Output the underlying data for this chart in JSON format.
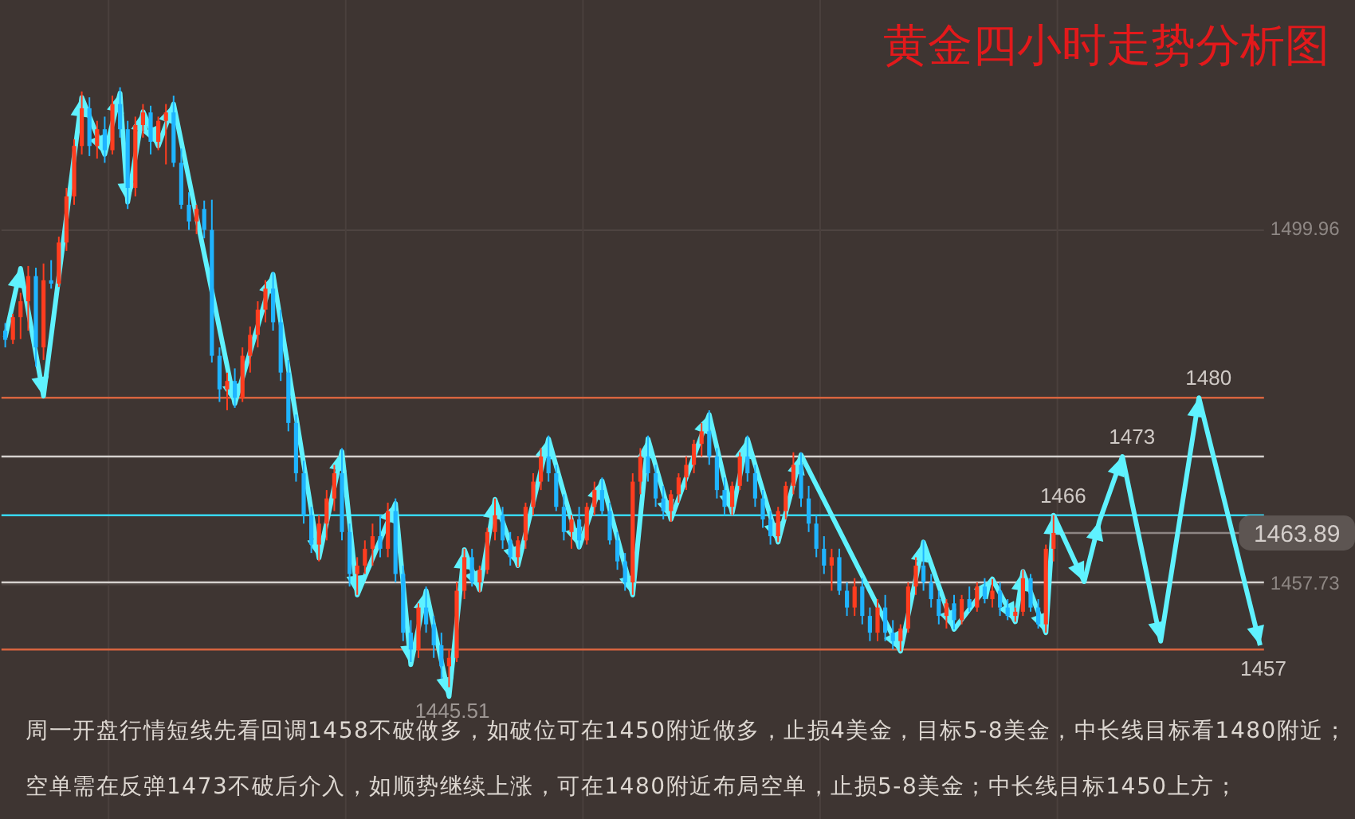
{
  "chart_data": {
    "type": "candlestick",
    "title": "黄金四小时走势分析图",
    "categories": [
      null,
      null,
      null,
      null,
      null,
      null,
      null,
      null,
      null,
      null,
      null,
      null,
      null,
      null,
      null,
      null,
      null,
      null,
      null,
      null,
      null,
      null,
      null,
      null,
      null,
      null,
      null,
      null,
      null,
      null,
      null,
      null,
      null,
      null,
      null,
      null,
      null,
      null,
      null,
      null,
      null,
      null,
      null,
      null,
      null,
      null,
      null,
      null,
      null,
      null,
      null,
      null,
      null,
      null,
      null,
      null,
      null,
      null,
      null,
      null,
      null,
      null,
      null,
      null,
      null,
      null,
      null,
      null,
      null,
      null,
      null,
      null,
      null,
      null,
      null,
      null,
      null,
      null,
      null,
      null,
      null,
      null,
      null,
      null,
      null,
      null,
      null,
      null,
      null,
      null,
      null,
      null,
      null,
      null,
      null,
      null,
      null,
      null,
      null,
      null,
      null,
      null,
      null,
      null,
      null,
      null,
      null,
      null,
      null,
      null,
      null,
      null,
      null,
      null,
      null,
      null,
      null,
      null,
      null,
      null,
      null,
      null,
      null,
      null,
      null,
      null,
      null,
      null,
      null,
      null,
      null,
      null,
      null,
      null,
      null,
      null,
      null,
      null,
      null,
      null,
      null,
      null,
      null,
      null,
      null,
      null,
      null,
      null,
      null,
      null,
      null,
      null,
      null,
      null,
      null,
      null,
      null,
      null,
      null,
      null,
      null,
      null,
      null,
      null,
      null
    ],
    "ohlc": [
      [
        1488.0,
        1488.9,
        1486.0,
        1486.9
      ],
      [
        1486.9,
        1490.0,
        1486.4,
        1489.6
      ],
      [
        1489.6,
        1492.5,
        1487.0,
        1491.5
      ],
      [
        1491.5,
        1495.7,
        1488.0,
        1494.5
      ],
      [
        1494.5,
        1495.5,
        1483.7,
        1486.0
      ],
      [
        1486.0,
        1496.0,
        1484.5,
        1494.0
      ],
      [
        1494.0,
        1496.4,
        1493.0,
        1493.6
      ],
      [
        1493.6,
        1499.2,
        1493.2,
        1498.5
      ],
      [
        1498.5,
        1505.0,
        1497.5,
        1504.0
      ],
      [
        1504.0,
        1510.8,
        1503.0,
        1510.0
      ],
      [
        1510.0,
        1516.5,
        1509.0,
        1514.5
      ],
      [
        1514.5,
        1515.8,
        1508.8,
        1510.0
      ],
      [
        1510.0,
        1513.0,
        1508.5,
        1512.0
      ],
      [
        1512.0,
        1513.5,
        1508.0,
        1509.5
      ],
      [
        1509.5,
        1516.0,
        1509.0,
        1515.0
      ],
      [
        1515.0,
        1517.0,
        1511.0,
        1512.0
      ],
      [
        1512.0,
        1513.0,
        1502.5,
        1505.0
      ],
      [
        1505.0,
        1513.5,
        1504.0,
        1512.5
      ],
      [
        1512.5,
        1515.0,
        1511.0,
        1514.0
      ],
      [
        1514.0,
        1514.8,
        1509.0,
        1510.5
      ],
      [
        1510.5,
        1513.5,
        1509.5,
        1513.0
      ],
      [
        1513.0,
        1515.0,
        1507.8,
        1514.0
      ],
      [
        1514.0,
        1516.0,
        1507.5,
        1508.0
      ],
      [
        1508.0,
        1509.7,
        1502.5,
        1503.0
      ],
      [
        1503.0,
        1504.5,
        1500.0,
        1501.0
      ],
      [
        1501.0,
        1503.0,
        1499.5,
        1502.5
      ],
      [
        1502.5,
        1503.5,
        1499.0,
        1500.0
      ],
      [
        1500.0,
        1503.6,
        1484.2,
        1485.0
      ],
      [
        1485.0,
        1486.0,
        1479.5,
        1481.0
      ],
      [
        1481.0,
        1483.0,
        1478.5,
        1482.0
      ],
      [
        1482.0,
        1483.5,
        1478.8,
        1480.0
      ],
      [
        1480.0,
        1486.0,
        1479.5,
        1485.0
      ],
      [
        1485.0,
        1488.5,
        1483.0,
        1487.5
      ],
      [
        1487.5,
        1491.5,
        1486.0,
        1490.5
      ],
      [
        1490.5,
        1494.0,
        1489.0,
        1493.0
      ],
      [
        1493.0,
        1495.0,
        1488.0,
        1489.0
      ],
      [
        1489.0,
        1490.5,
        1482.0,
        1483.0
      ],
      [
        1483.0,
        1484.5,
        1476.0,
        1477.0
      ],
      [
        1477.0,
        1478.0,
        1470.0,
        1471.0
      ],
      [
        1471.0,
        1472.5,
        1465.0,
        1466.0
      ],
      [
        1466.0,
        1467.0,
        1461.5,
        1462.5
      ],
      [
        1462.5,
        1466.0,
        1460.5,
        1465.0
      ],
      [
        1465.0,
        1469.0,
        1463.0,
        1468.0
      ],
      [
        1468.0,
        1472.0,
        1466.5,
        1471.0
      ],
      [
        1471.0,
        1474.0,
        1463.0,
        1464.0
      ],
      [
        1464.0,
        1465.0,
        1457.5,
        1459.0
      ],
      [
        1459.0,
        1461.0,
        1456.5,
        1460.0
      ],
      [
        1460.0,
        1463.0,
        1459.0,
        1462.0
      ],
      [
        1462.0,
        1465.0,
        1460.0,
        1463.5
      ],
      [
        1463.5,
        1466.0,
        1461.0,
        1462.0
      ],
      [
        1462.0,
        1467.5,
        1461.0,
        1466.5
      ],
      [
        1466.5,
        1468.0,
        1458.0,
        1459.0
      ],
      [
        1459.0,
        1460.0,
        1451.0,
        1452.0
      ],
      [
        1452.0,
        1453.5,
        1448.5,
        1450.0
      ],
      [
        1450.0,
        1455.5,
        1449.0,
        1455.0
      ],
      [
        1455.0,
        1457.5,
        1452.0,
        1453.0
      ],
      [
        1453.0,
        1454.0,
        1449.0,
        1450.5
      ],
      [
        1450.5,
        1452.0,
        1446.5,
        1448.0
      ],
      [
        1448.0,
        1450.0,
        1445.51,
        1449.0
      ],
      [
        1449.0,
        1458.0,
        1448.5,
        1457.0
      ],
      [
        1457.0,
        1462.0,
        1456.0,
        1461.0
      ],
      [
        1461.0,
        1462.0,
        1457.5,
        1458.0
      ],
      [
        1458.0,
        1460.0,
        1456.8,
        1459.5
      ],
      [
        1459.5,
        1464.5,
        1459.0,
        1464.0
      ],
      [
        1464.0,
        1468.0,
        1463.0,
        1466.0
      ],
      [
        1466.0,
        1467.0,
        1462.0,
        1463.0
      ],
      [
        1463.0,
        1464.0,
        1460.0,
        1461.0
      ],
      [
        1461.0,
        1463.5,
        1459.8,
        1463.0
      ],
      [
        1463.0,
        1467.5,
        1462.0,
        1467.0
      ],
      [
        1467.0,
        1471.0,
        1466.0,
        1470.0
      ],
      [
        1470.0,
        1474.0,
        1469.0,
        1473.0
      ],
      [
        1473.0,
        1475.5,
        1470.0,
        1471.0
      ],
      [
        1471.0,
        1472.0,
        1466.5,
        1467.0
      ],
      [
        1467.0,
        1468.5,
        1463.0,
        1464.0
      ],
      [
        1464.0,
        1466.0,
        1462.0,
        1465.5
      ],
      [
        1465.5,
        1467.0,
        1462.0,
        1463.0
      ],
      [
        1463.0,
        1467.5,
        1462.5,
        1467.0
      ],
      [
        1467.0,
        1470.0,
        1466.0,
        1469.0
      ],
      [
        1469.0,
        1470.5,
        1466.0,
        1466.5
      ],
      [
        1466.5,
        1467.5,
        1462.5,
        1463.0
      ],
      [
        1463.0,
        1464.0,
        1459.5,
        1460.5
      ],
      [
        1460.5,
        1461.5,
        1457.0,
        1458.0
      ],
      [
        1458.0,
        1471.0,
        1456.5,
        1470.0
      ],
      [
        1470.0,
        1474.0,
        1468.5,
        1473.0
      ],
      [
        1473.0,
        1475.5,
        1470.0,
        1471.0
      ],
      [
        1471.0,
        1472.0,
        1467.0,
        1468.0
      ],
      [
        1468.0,
        1469.5,
        1465.5,
        1466.5
      ],
      [
        1466.5,
        1469.0,
        1465.2,
        1468.5
      ],
      [
        1468.5,
        1471.0,
        1467.5,
        1470.5
      ],
      [
        1470.5,
        1473.0,
        1469.0,
        1472.0
      ],
      [
        1472.0,
        1475.0,
        1471.0,
        1474.5
      ],
      [
        1474.5,
        1477.0,
        1473.0,
        1476.0
      ],
      [
        1476.0,
        1478.5,
        1472.0,
        1473.0
      ],
      [
        1473.0,
        1474.0,
        1468.0,
        1469.0
      ],
      [
        1469.0,
        1470.5,
        1466.0,
        1467.0
      ],
      [
        1467.0,
        1470.0,
        1466.0,
        1469.5
      ],
      [
        1469.5,
        1473.5,
        1469.0,
        1473.0
      ],
      [
        1473.0,
        1475.5,
        1470.0,
        1471.0
      ],
      [
        1471.0,
        1472.0,
        1467.0,
        1468.0
      ],
      [
        1468.0,
        1469.0,
        1464.5,
        1465.5
      ],
      [
        1465.5,
        1466.5,
        1462.5,
        1463.5
      ],
      [
        1463.5,
        1467.0,
        1462.8,
        1466.5
      ],
      [
        1466.5,
        1470.0,
        1465.5,
        1469.5
      ],
      [
        1469.5,
        1473.5,
        1468.5,
        1472.0
      ],
      [
        1472.0,
        1473.5,
        1467.0,
        1468.0
      ],
      [
        1468.0,
        1469.5,
        1464.0,
        1465.0
      ],
      [
        1465.0,
        1466.0,
        1461.0,
        1462.0
      ],
      [
        1462.0,
        1463.5,
        1459.0,
        1460.0
      ],
      [
        1460.0,
        1462.0,
        1457.0,
        1461.0
      ],
      [
        1461.0,
        1462.0,
        1456.5,
        1457.0
      ],
      [
        1457.0,
        1458.0,
        1454.0,
        1455.0
      ],
      [
        1455.0,
        1458.5,
        1454.0,
        1457.5
      ],
      [
        1457.5,
        1458.5,
        1453.0,
        1454.0
      ],
      [
        1454.0,
        1455.0,
        1451.0,
        1452.0
      ],
      [
        1452.0,
        1456.0,
        1451.0,
        1455.0
      ],
      [
        1455.0,
        1456.5,
        1451.0,
        1452.0
      ],
      [
        1452.0,
        1453.5,
        1450.0,
        1451.0
      ],
      [
        1451.0,
        1453.0,
        1449.8,
        1452.5
      ],
      [
        1452.5,
        1458.0,
        1452.0,
        1457.5
      ],
      [
        1457.5,
        1461.0,
        1456.5,
        1460.0
      ],
      [
        1460.0,
        1463.0,
        1457.0,
        1458.0
      ],
      [
        1458.0,
        1459.0,
        1455.0,
        1456.0
      ],
      [
        1456.0,
        1457.0,
        1453.0,
        1454.0
      ],
      [
        1454.0,
        1456.0,
        1452.5,
        1455.5
      ],
      [
        1455.5,
        1456.5,
        1452.4,
        1453.5
      ],
      [
        1453.5,
        1456.5,
        1453.0,
        1456.0
      ],
      [
        1456.0,
        1457.5,
        1454.5,
        1455.0
      ],
      [
        1455.0,
        1458.0,
        1454.5,
        1457.5
      ],
      [
        1457.5,
        1458.5,
        1455.5,
        1456.0
      ],
      [
        1456.0,
        1458.4,
        1455.0,
        1457.0
      ],
      [
        1457.0,
        1458.0,
        1454.0,
        1455.0
      ],
      [
        1455.0,
        1456.0,
        1453.5,
        1454.0
      ],
      [
        1454.0,
        1455.0,
        1453.3,
        1454.5
      ],
      [
        1454.5,
        1459.5,
        1454.0,
        1458.5
      ],
      [
        1458.5,
        1459.0,
        1454.5,
        1455.0
      ],
      [
        1455.0,
        1456.0,
        1452.5,
        1453.0
      ],
      [
        1453.0,
        1462.5,
        1452.0,
        1462.0
      ],
      [
        1462.0,
        1466.0,
        1460.5,
        1463.89
      ],
      null,
      null,
      null,
      null,
      null,
      null,
      null,
      null,
      null,
      null,
      null,
      null,
      null,
      null,
      null,
      null,
      null,
      null,
      null,
      null,
      null,
      null,
      null,
      null,
      null,
      null,
      null
    ],
    "series": [
      {
        "type": "line",
        "color": "#5ff2ff",
        "values": [
          1487.2,
          null,
          1495.4,
          null,
          null,
          1480.2,
          null,
          null,
          null,
          null,
          1515.8,
          null,
          null,
          1509.0,
          null,
          1516.3,
          1503.3,
          null,
          1514.1,
          null,
          1510.0,
          null,
          1515.0,
          null,
          null,
          null,
          null,
          null,
          null,
          null,
          1479.3,
          null,
          null,
          null,
          null,
          1494.7,
          null,
          null,
          null,
          null,
          null,
          1460.9,
          null,
          null,
          1473.6,
          null,
          1456.5,
          null,
          null,
          null,
          null,
          1467.4,
          null,
          1448.2,
          null,
          1457.0,
          null,
          null,
          1444.4,
          null,
          1461.9,
          null,
          1457.1,
          null,
          1467.9,
          null,
          null,
          1460.0,
          null,
          null,
          null,
          1475.1,
          null,
          null,
          null,
          1462.2,
          null,
          null,
          1470.1,
          null,
          null,
          null,
          1456.5,
          null,
          1475.1,
          null,
          null,
          1465.5,
          null,
          null,
          null,
          null,
          1478.0,
          null,
          null,
          1466.3,
          null,
          1475.1,
          null,
          null,
          null,
          1462.8,
          null,
          null,
          1473.2,
          null,
          null,
          null,
          null,
          null,
          null,
          null,
          null,
          null,
          null,
          null,
          null,
          1449.8,
          null,
          null,
          1462.8,
          null,
          null,
          null,
          1452.4,
          null,
          null,
          null,
          null,
          1458.4,
          null,
          null,
          1453.3,
          1459.3,
          null,
          null,
          1452.0,
          1466,
          null,
          null,
          null,
          1458.1,
          null,
          1465.3,
          null,
          null,
          1473,
          null,
          null,
          null,
          null,
          1451.0,
          null,
          null,
          null,
          null,
          1480,
          null,
          null,
          null,
          null,
          null,
          null,
          null,
          1450.5
        ],
        "value_labels": [
          null,
          null,
          null,
          null,
          null,
          null,
          null,
          null,
          null,
          null,
          null,
          null,
          null,
          null,
          null,
          null,
          null,
          null,
          null,
          null,
          null,
          null,
          null,
          null,
          null,
          null,
          null,
          null,
          null,
          null,
          null,
          null,
          null,
          null,
          null,
          null,
          null,
          null,
          null,
          null,
          null,
          null,
          null,
          null,
          null,
          null,
          null,
          null,
          null,
          null,
          null,
          null,
          null,
          null,
          null,
          null,
          null,
          null,
          null,
          null,
          null,
          null,
          null,
          null,
          null,
          null,
          null,
          null,
          null,
          null,
          null,
          null,
          null,
          null,
          null,
          null,
          null,
          null,
          null,
          null,
          null,
          null,
          null,
          null,
          null,
          null,
          null,
          null,
          null,
          null,
          null,
          null,
          null,
          null,
          null,
          null,
          null,
          null,
          null,
          null,
          null,
          null,
          null,
          null,
          null,
          null,
          null,
          null,
          null,
          null,
          null,
          null,
          null,
          null,
          null,
          null,
          null,
          null,
          null,
          null,
          null,
          null,
          null,
          null,
          null,
          null,
          null,
          null,
          null,
          null,
          null,
          null,
          null,
          null,
          null,
          null,
          null,
          "1466",
          null,
          null,
          null,
          null,
          null,
          null,
          null,
          null,
          "1473",
          null,
          null,
          null,
          null,
          null,
          null,
          null,
          null,
          null,
          "1480",
          null,
          null,
          null,
          null,
          null,
          null,
          null,
          null
        ]
      }
    ],
    "ylim": [
      1429.8,
      1527.4
    ],
    "yticks": [
      1499.96,
      1457.73
    ],
    "grid": true,
    "tick_labels": "y",
    "ref_lines": [
      {
        "axis": "y",
        "value": 1480,
        "color": "#d8643f"
      },
      {
        "axis": "y",
        "value": 1473,
        "color": "#d6d2cf"
      },
      {
        "axis": "y",
        "value": 1466,
        "color": "#38d8f5"
      },
      {
        "axis": "y",
        "value": 1458,
        "color": "#d6d2cf"
      },
      {
        "axis": "y",
        "value": 1450,
        "color": "#d8643f"
      },
      {
        "axis": "y",
        "value": 1463.89,
        "label": "1463.89",
        "color": "#8d8583"
      }
    ],
    "annotations": [
      {
        "text": "1445.51",
        "y": 1445.51
      },
      {
        "text": "1457",
        "y": 1450.5
      },
      "周一开盘行情短线先看回调1458不破做多，如破位可在1450附近做多，止损4美金，目标5-8美金，中长线目标看1480附近；",
      "空单需在反弹1473不破后介入，如顺势继续上涨，可在1480附近布局空单，止损5-8美金；中长线目标1450上方；"
    ]
  }
}
